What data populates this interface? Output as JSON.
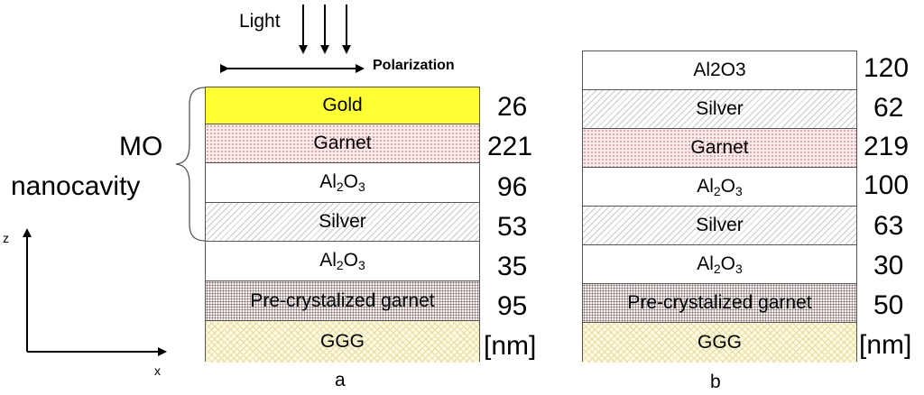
{
  "incident": {
    "light_label": "Light",
    "polarization_label": "Polarization"
  },
  "mo_label": {
    "line1": "MO",
    "line2": "nanocavity"
  },
  "axes": {
    "z_label": "z",
    "x_label": "x"
  },
  "stack_a": {
    "caption": "a",
    "unit": "[nm]",
    "layers": [
      {
        "name": "Gold",
        "thickness": "26"
      },
      {
        "name": "Garnet",
        "thickness": "221"
      },
      {
        "name_main": "Al",
        "name_sub1": "2",
        "name_mid": "O",
        "name_sub2": "3",
        "thickness": "96"
      },
      {
        "name": "Silver",
        "thickness": "53"
      },
      {
        "name_main": "Al",
        "name_sub1": "2",
        "name_mid": "O",
        "name_sub2": "3",
        "thickness": "35"
      },
      {
        "name": "Pre-crystalized garnet",
        "thickness": "95"
      },
      {
        "name": "GGG"
      }
    ]
  },
  "stack_b": {
    "caption": "b",
    "unit": "[nm]",
    "layers": [
      {
        "name": "Al2O3",
        "thickness": "120"
      },
      {
        "name": "Silver",
        "thickness": "62"
      },
      {
        "name": "Garnet",
        "thickness": "219"
      },
      {
        "name_main": "Al",
        "name_sub1": "2",
        "name_mid": "O",
        "name_sub2": "3",
        "thickness": "100"
      },
      {
        "name": "Silver",
        "thickness": "63"
      },
      {
        "name_main": "Al",
        "name_sub1": "2",
        "name_mid": "O",
        "name_sub2": "3",
        "thickness": "30"
      },
      {
        "name": "Pre-crystalized garnet",
        "thickness": "50"
      },
      {
        "name": "GGG"
      }
    ]
  }
}
